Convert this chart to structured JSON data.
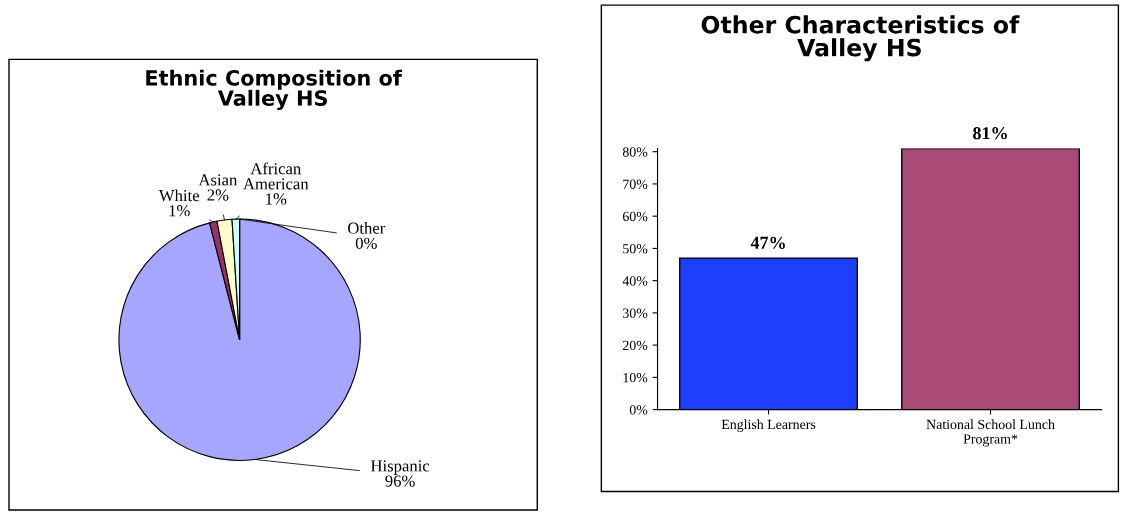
{
  "chart_data": [
    {
      "type": "pie",
      "title": "Ethnic Composition of\nValley HS",
      "categories": [
        "Hispanic",
        "White",
        "Asian",
        "African\nAmerican",
        "Other"
      ],
      "values": [
        96,
        1,
        2,
        1,
        0
      ],
      "colors": [
        "#a6a6ff",
        "#993366",
        "#ffffcc",
        "#ccffff",
        "#ffffff"
      ],
      "value_labels": [
        "96%",
        "1%",
        "2%",
        "1%",
        "0%"
      ]
    },
    {
      "type": "bar",
      "title": "Other Characteristics of\nValley HS",
      "categories": [
        "English Learners",
        "National School Lunch\nProgram*"
      ],
      "values": [
        47,
        81
      ],
      "colors": [
        "#1f3fff",
        "#aa4a77"
      ],
      "value_labels": [
        "47%",
        "81%"
      ],
      "ylim": [
        0,
        81
      ],
      "yticks": [
        {
          "value": 0,
          "label": "0%"
        },
        {
          "value": 10,
          "label": "10%"
        },
        {
          "value": 20,
          "label": "20%"
        },
        {
          "value": 30,
          "label": "30%"
        },
        {
          "value": 40,
          "label": "40%"
        },
        {
          "value": 50,
          "label": "50%"
        },
        {
          "value": 60,
          "label": "60%"
        },
        {
          "value": 70,
          "label": "70%"
        },
        {
          "value": 80,
          "label": "80%"
        }
      ],
      "grid": false,
      "legend": false
    }
  ]
}
